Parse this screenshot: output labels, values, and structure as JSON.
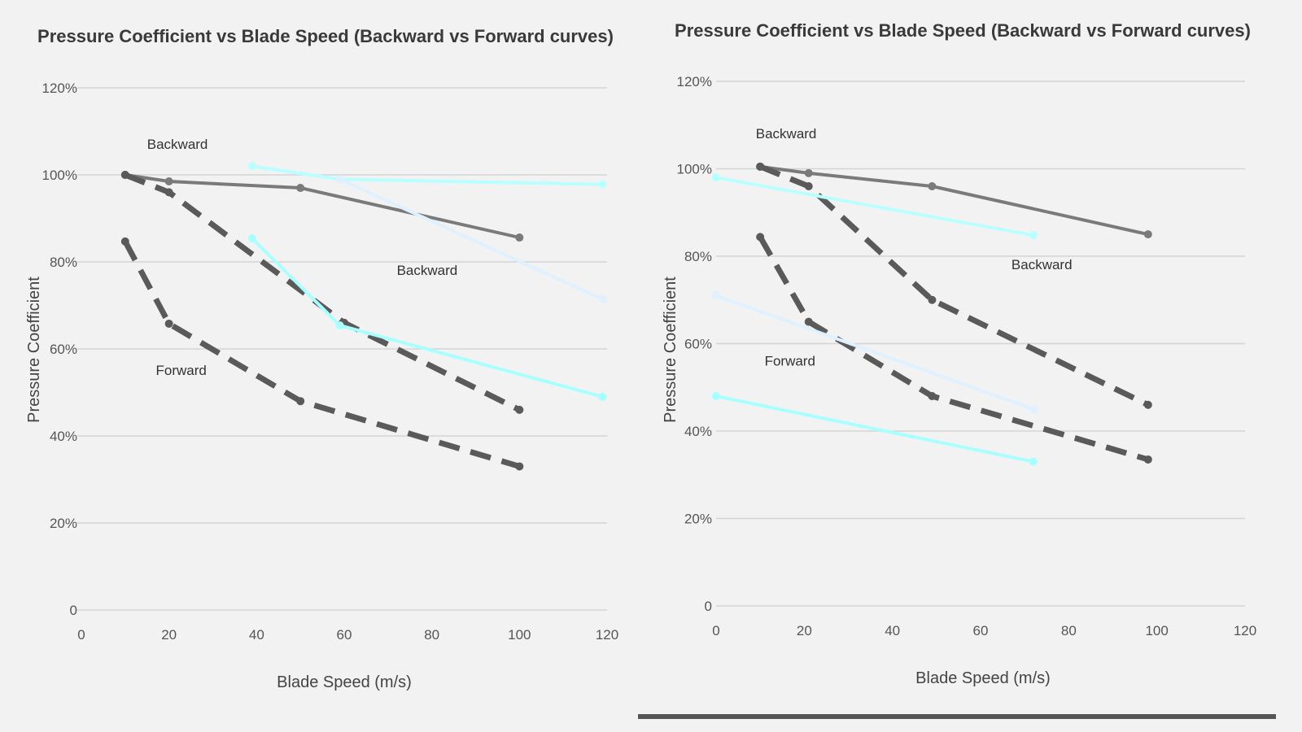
{
  "chart_data": [
    {
      "type": "line",
      "title": "Pressure Coefficient vs Blade Speed (Backward vs Forward curves)",
      "xlabel": "Blade Speed (m/s)",
      "ylabel": "Pressure Coefficient",
      "xlim": [
        0,
        120
      ],
      "ylim": [
        0,
        120
      ],
      "xticks": [
        "0",
        "20",
        "40",
        "60",
        "80",
        "100",
        "120"
      ],
      "yticks": [
        "0",
        "20%",
        "40%",
        "60%",
        "80%",
        "100%",
        "120%"
      ],
      "grid": true,
      "series": [
        {
          "color": "#7a7a7a",
          "style": "solid",
          "points": [
            [
              10,
              100
            ],
            [
              20,
              98.5
            ],
            [
              50,
              97
            ],
            [
              100,
              85.6
            ]
          ]
        },
        {
          "color": "#5a5a5a",
          "style": "dashed",
          "points": [
            [
              10,
              100
            ],
            [
              20,
              96
            ],
            [
              60,
              66
            ],
            [
              100,
              46
            ]
          ]
        },
        {
          "color": "#5a5a5a",
          "style": "dashed",
          "points": [
            [
              10,
              84.7
            ],
            [
              20,
              65.8
            ],
            [
              50,
              48
            ],
            [
              100,
              33
            ]
          ]
        },
        {
          "color": "#b8ffff",
          "style": "solid",
          "points": [
            [
              39,
              102
            ],
            [
              59,
              99
            ],
            [
              119,
              97.8
            ]
          ]
        },
        {
          "color": "#dff0ff",
          "style": "solid",
          "points": [
            [
              59,
              99
            ],
            [
              119,
              71.4
            ]
          ]
        },
        {
          "color": "#a8ffff",
          "style": "solid",
          "points": [
            [
              39,
              85.4
            ],
            [
              59,
              65.4
            ],
            [
              119,
              49
            ]
          ]
        }
      ],
      "annotations": [
        {
          "text": "Backward",
          "x": 15,
          "y": 106
        },
        {
          "text": "Forward",
          "x": 17,
          "y": 54
        },
        {
          "text": "Backward",
          "x": 72,
          "y": 77
        }
      ]
    },
    {
      "type": "line",
      "title": "Pressure Coefficient vs Blade Speed (Backward vs Forward curves)",
      "xlabel": "Blade Speed (m/s)",
      "ylabel": "Pressure Coefficient",
      "xlim": [
        0,
        120
      ],
      "ylim": [
        0,
        120
      ],
      "xticks": [
        "0",
        "20",
        "40",
        "60",
        "80",
        "100",
        "120"
      ],
      "yticks": [
        "0",
        "20%",
        "40%",
        "60%",
        "80%",
        "100%",
        "120%"
      ],
      "grid": true,
      "series": [
        {
          "color": "#7a7a7a",
          "style": "solid",
          "points": [
            [
              10,
              100.5
            ],
            [
              21,
              99
            ],
            [
              49,
              96
            ],
            [
              98,
              85
            ]
          ]
        },
        {
          "color": "#5a5a5a",
          "style": "dashed",
          "points": [
            [
              10,
              100.5
            ],
            [
              21,
              96
            ],
            [
              49,
              70
            ],
            [
              98,
              46
            ]
          ]
        },
        {
          "color": "#5a5a5a",
          "style": "dashed",
          "points": [
            [
              10,
              84.4
            ],
            [
              21,
              65
            ],
            [
              49,
              48
            ],
            [
              98,
              33.5
            ]
          ]
        },
        {
          "color": "#b8ffff",
          "style": "solid",
          "points": [
            [
              0,
              98
            ],
            [
              72,
              84.8
            ]
          ]
        },
        {
          "color": "#dff0ff",
          "style": "solid",
          "points": [
            [
              0,
              71
            ],
            [
              72,
              45
            ]
          ]
        },
        {
          "color": "#a8ffff",
          "style": "solid",
          "points": [
            [
              0,
              48
            ],
            [
              72,
              33
            ]
          ]
        }
      ],
      "annotations": [
        {
          "text": "Backward",
          "x": 9,
          "y": 107
        },
        {
          "text": "Forward",
          "x": 11,
          "y": 55
        },
        {
          "text": "Backward",
          "x": 67,
          "y": 77
        }
      ]
    }
  ],
  "scroll_bar": {
    "color": "#555555"
  }
}
